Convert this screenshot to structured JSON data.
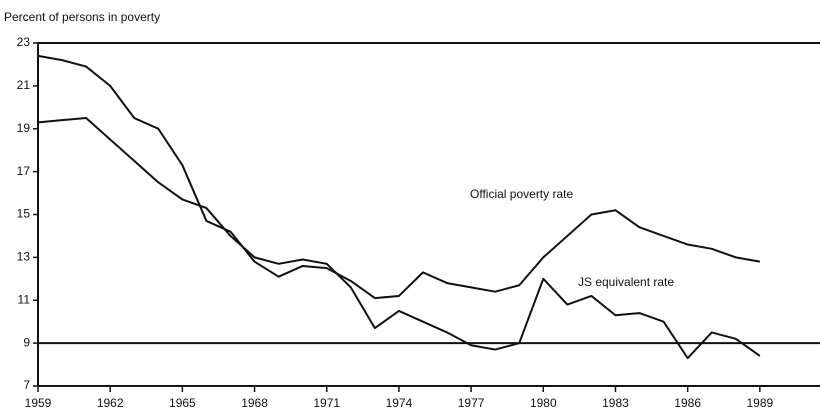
{
  "chart_data": {
    "type": "line",
    "y_axis_label": "Percent of persons in poverty",
    "x": [
      1959,
      1960,
      1961,
      1962,
      1963,
      1964,
      1965,
      1966,
      1967,
      1968,
      1969,
      1970,
      1971,
      1972,
      1973,
      1974,
      1975,
      1976,
      1977,
      1978,
      1979,
      1980,
      1981,
      1982,
      1983,
      1984,
      1985,
      1986,
      1987,
      1988,
      1989
    ],
    "series": [
      {
        "name": "Official poverty rate",
        "color": "#111111",
        "values": [
          22.4,
          22.2,
          21.9,
          21.0,
          19.5,
          19.0,
          17.3,
          14.7,
          14.2,
          12.8,
          12.1,
          12.6,
          12.5,
          11.9,
          11.1,
          11.2,
          12.3,
          11.8,
          11.6,
          11.4,
          11.7,
          13.0,
          14.0,
          15.0,
          15.2,
          14.4,
          14.0,
          13.6,
          13.4,
          13.0,
          12.8
        ]
      },
      {
        "name": "JS equivalent rate",
        "color": "#111111",
        "values": [
          19.3,
          19.4,
          19.5,
          18.5,
          17.5,
          16.5,
          15.7,
          15.3,
          14.0,
          13.0,
          12.7,
          12.9,
          12.7,
          11.6,
          9.7,
          10.5,
          10.0,
          9.5,
          8.9,
          8.7,
          9.0,
          12.0,
          10.8,
          11.2,
          10.3,
          10.4,
          10.0,
          8.3,
          9.5,
          9.2,
          8.4
        ]
      }
    ],
    "xlim": [
      1959,
      1991.5
    ],
    "xticks": [
      1959,
      1962,
      1965,
      1968,
      1971,
      1974,
      1977,
      1980,
      1983,
      1986,
      1989
    ],
    "ylim": [
      7,
      23
    ],
    "yticks": [
      7,
      9,
      11,
      13,
      15,
      17,
      19,
      21,
      23
    ],
    "reference_line": 9
  }
}
